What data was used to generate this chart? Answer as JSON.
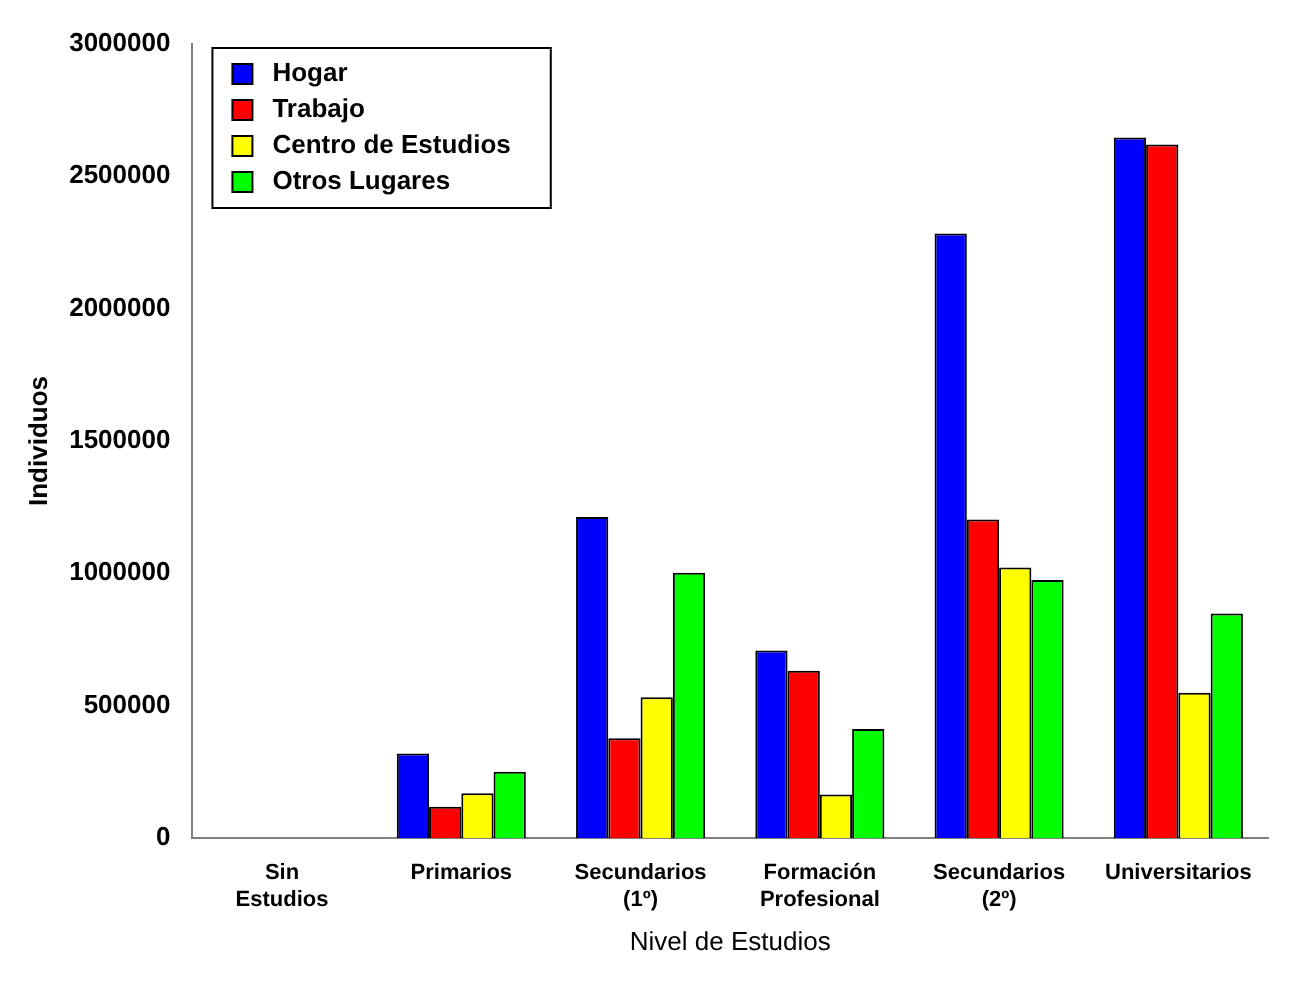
{
  "chart_data": {
    "type": "bar",
    "xlabel": "Nivel de Estudios",
    "ylabel": "Individuos",
    "categories": [
      "Sin Estudios",
      "Primarios",
      "Secundarios (1º)",
      "Formación Profesional",
      "Secundarios (2º)",
      "Universitarios"
    ],
    "series": [
      {
        "name": "Hogar",
        "color": "#0000ff",
        "values": [
          null,
          319000,
          1213000,
          708000,
          2284000,
          2647000
        ]
      },
      {
        "name": "Trabajo",
        "color": "#ff0000",
        "values": [
          null,
          118000,
          377000,
          632000,
          1203000,
          2620000
        ]
      },
      {
        "name": "Centro de Estudios",
        "color": "#ffff00",
        "values": [
          null,
          169000,
          532000,
          164000,
          1022000,
          549000
        ]
      },
      {
        "name": "Otros Lugares",
        "color": "#00ff00",
        "values": [
          null,
          250000,
          1002000,
          412000,
          975000,
          848000
        ]
      }
    ],
    "ylim": [
      0,
      3000000
    ],
    "yticks": [
      0,
      500000,
      1000000,
      1500000,
      2000000,
      2500000,
      3000000
    ],
    "grid": false,
    "legend": "top left"
  }
}
